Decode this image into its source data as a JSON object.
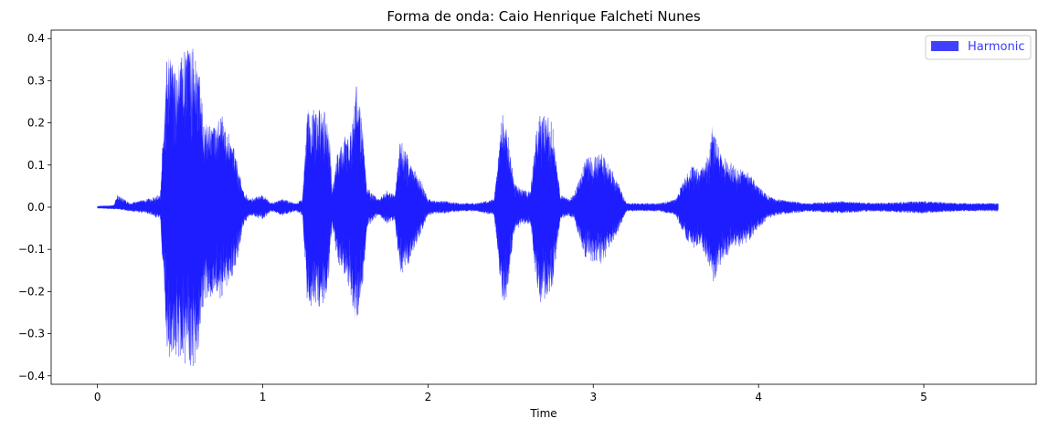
{
  "chart_data": {
    "type": "area",
    "title": "Forma de onda: Caio Henrique Falcheti Nunes",
    "xlabel": "Time",
    "ylabel": "",
    "xlim": [
      -0.28,
      5.68
    ],
    "ylim": [
      -0.42,
      0.42
    ],
    "xticks": [
      0,
      1,
      2,
      3,
      4,
      5
    ],
    "yticks": [
      -0.4,
      -0.3,
      -0.2,
      -0.1,
      0.0,
      0.1,
      0.2,
      0.3,
      0.4
    ],
    "ytick_labels": [
      "−0.4",
      "−0.3",
      "−0.2",
      "−0.1",
      "0.0",
      "0.1",
      "0.2",
      "0.3",
      "0.4"
    ],
    "grid": false,
    "legend": {
      "position": "top-right",
      "entries": [
        "Harmonic"
      ]
    },
    "series": [
      {
        "name": "Harmonic",
        "color": "#0000ff",
        "alpha": 0.75,
        "envelope": {
          "t": [
            0.0,
            0.1,
            0.12,
            0.2,
            0.3,
            0.38,
            0.42,
            0.44,
            0.47,
            0.5,
            0.55,
            0.6,
            0.65,
            0.7,
            0.75,
            0.8,
            0.85,
            0.88,
            0.92,
            1.0,
            1.05,
            1.12,
            1.2,
            1.24,
            1.27,
            1.3,
            1.35,
            1.4,
            1.42,
            1.45,
            1.5,
            1.53,
            1.56,
            1.6,
            1.63,
            1.67,
            1.7,
            1.75,
            1.8,
            1.83,
            1.86,
            1.9,
            1.95,
            2.0,
            2.05,
            2.1,
            2.2,
            2.3,
            2.4,
            2.45,
            2.48,
            2.52,
            2.58,
            2.62,
            2.66,
            2.68,
            2.7,
            2.75,
            2.8,
            2.85,
            2.88,
            2.92,
            2.95,
            3.0,
            3.05,
            3.1,
            3.15,
            3.2,
            3.3,
            3.4,
            3.5,
            3.55,
            3.6,
            3.65,
            3.7,
            3.72,
            3.75,
            3.8,
            3.85,
            3.9,
            3.95,
            4.0,
            4.05,
            4.1,
            4.2,
            4.3,
            4.5,
            4.7,
            5.0,
            5.2,
            5.45
          ],
          "max": [
            0.003,
            0.005,
            0.03,
            0.01,
            0.02,
            0.03,
            0.36,
            0.37,
            0.34,
            0.36,
            0.39,
            0.38,
            0.2,
            0.2,
            0.22,
            0.18,
            0.1,
            0.04,
            0.02,
            0.03,
            0.01,
            0.02,
            0.01,
            0.02,
            0.24,
            0.23,
            0.24,
            0.21,
            0.04,
            0.13,
            0.17,
            0.18,
            0.31,
            0.22,
            0.05,
            0.03,
            0.02,
            0.04,
            0.03,
            0.16,
            0.15,
            0.1,
            0.07,
            0.02,
            0.015,
            0.015,
            0.01,
            0.01,
            0.02,
            0.23,
            0.19,
            0.06,
            0.04,
            0.04,
            0.2,
            0.22,
            0.23,
            0.21,
            0.03,
            0.02,
            0.03,
            0.07,
            0.12,
            0.12,
            0.13,
            0.1,
            0.06,
            0.01,
            0.01,
            0.01,
            0.02,
            0.07,
            0.1,
            0.09,
            0.14,
            0.2,
            0.15,
            0.12,
            0.1,
            0.09,
            0.08,
            0.05,
            0.03,
            0.02,
            0.015,
            0.01,
            0.015,
            0.01,
            0.015,
            0.01,
            0.01
          ],
          "min": [
            -0.003,
            -0.005,
            -0.005,
            -0.01,
            -0.015,
            -0.03,
            -0.33,
            -0.37,
            -0.35,
            -0.37,
            -0.39,
            -0.37,
            -0.22,
            -0.21,
            -0.22,
            -0.19,
            -0.12,
            -0.05,
            -0.02,
            -0.03,
            -0.01,
            -0.02,
            -0.01,
            -0.02,
            -0.23,
            -0.24,
            -0.24,
            -0.2,
            -0.04,
            -0.13,
            -0.17,
            -0.2,
            -0.28,
            -0.22,
            -0.05,
            -0.03,
            -0.02,
            -0.04,
            -0.03,
            -0.17,
            -0.16,
            -0.12,
            -0.07,
            -0.02,
            -0.015,
            -0.015,
            -0.01,
            -0.01,
            -0.02,
            -0.23,
            -0.21,
            -0.06,
            -0.04,
            -0.04,
            -0.21,
            -0.23,
            -0.22,
            -0.21,
            -0.03,
            -0.02,
            -0.03,
            -0.08,
            -0.12,
            -0.13,
            -0.14,
            -0.1,
            -0.06,
            -0.01,
            -0.01,
            -0.01,
            -0.02,
            -0.07,
            -0.1,
            -0.09,
            -0.14,
            -0.2,
            -0.15,
            -0.12,
            -0.1,
            -0.09,
            -0.08,
            -0.05,
            -0.03,
            -0.02,
            -0.015,
            -0.01,
            -0.015,
            -0.01,
            -0.015,
            -0.01,
            -0.01
          ]
        }
      }
    ]
  }
}
